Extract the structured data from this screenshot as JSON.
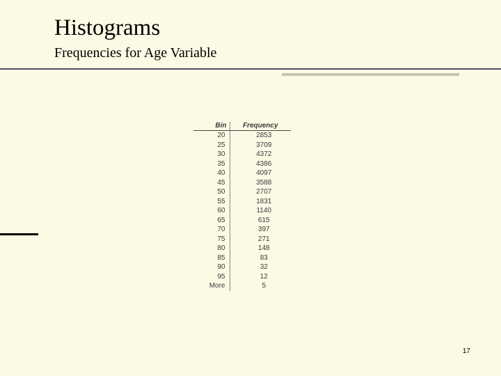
{
  "title": "Histograms",
  "subtitle": "Frequencies for Age Variable",
  "page_number": "17",
  "table": {
    "headers": {
      "bin": "Bin",
      "freq": "Frequency"
    },
    "rows": [
      {
        "bin": "20",
        "freq": "2853"
      },
      {
        "bin": "25",
        "freq": "3709"
      },
      {
        "bin": "30",
        "freq": "4372"
      },
      {
        "bin": "35",
        "freq": "4386"
      },
      {
        "bin": "40",
        "freq": "4097"
      },
      {
        "bin": "45",
        "freq": "3588"
      },
      {
        "bin": "50",
        "freq": "2707"
      },
      {
        "bin": "55",
        "freq": "1831"
      },
      {
        "bin": "60",
        "freq": "1140"
      },
      {
        "bin": "65",
        "freq": "615"
      },
      {
        "bin": "70",
        "freq": "397"
      },
      {
        "bin": "75",
        "freq": "271"
      },
      {
        "bin": "80",
        "freq": "148"
      },
      {
        "bin": "85",
        "freq": "83"
      },
      {
        "bin": "90",
        "freq": "32"
      },
      {
        "bin": "95",
        "freq": "12"
      },
      {
        "bin": "More",
        "freq": "5"
      }
    ]
  },
  "colors": {
    "background": "#fbfae4",
    "divider": "#5a4a6a",
    "divider_shadow": "#c8c7b5",
    "text": "#000000",
    "table_text": "#3a3a3a",
    "table_border": "#888888"
  }
}
